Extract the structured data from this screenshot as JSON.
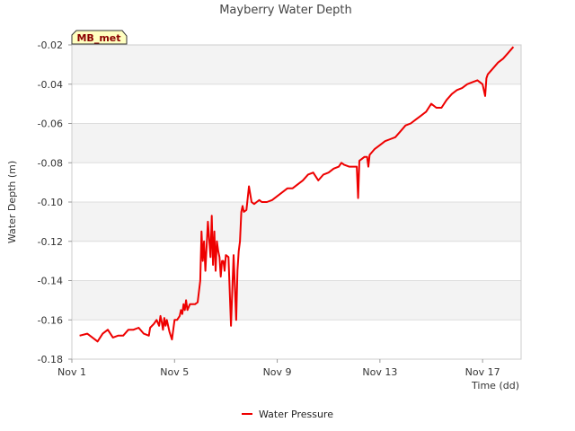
{
  "chart_data": {
    "type": "line",
    "title": "Mayberry Water Depth",
    "xlabel": "Time (dd)",
    "ylabel": "Water Depth (m)",
    "xlim": [
      1,
      18.5
    ],
    "ylim": [
      -0.18,
      -0.02
    ],
    "x_ticks": [
      1,
      5,
      9,
      13,
      17
    ],
    "x_tick_labels": [
      "Nov 1",
      "Nov 5",
      "Nov 9",
      "Nov 13",
      "Nov 17"
    ],
    "y_ticks": [
      -0.18,
      -0.16,
      -0.14,
      -0.12,
      -0.1,
      -0.08,
      -0.06,
      -0.04,
      -0.02
    ],
    "y_tick_labels": [
      "-0.18",
      "-0.16",
      "-0.14",
      "-0.12",
      "-0.10",
      "-0.08",
      "-0.06",
      "-0.04",
      "-0.02"
    ],
    "badge": "MB_met",
    "legend": {
      "placement": "bottom-center",
      "entries": [
        "Water Pressure"
      ]
    },
    "series": [
      {
        "name": "Water Pressure",
        "color": "#ee0000",
        "x": [
          1.3,
          1.6,
          1.8,
          2.0,
          2.2,
          2.4,
          2.6,
          2.8,
          3.0,
          3.2,
          3.4,
          3.6,
          3.8,
          4.0,
          4.05,
          4.2,
          4.3,
          4.4,
          4.45,
          4.5,
          4.55,
          4.6,
          4.65,
          4.7,
          4.8,
          4.9,
          5.0,
          5.1,
          5.2,
          5.25,
          5.3,
          5.35,
          5.4,
          5.45,
          5.5,
          5.6,
          5.8,
          5.9,
          6.0,
          6.05,
          6.1,
          6.15,
          6.2,
          6.3,
          6.4,
          6.45,
          6.5,
          6.55,
          6.6,
          6.65,
          6.7,
          6.75,
          6.8,
          6.85,
          6.9,
          6.95,
          7.0,
          7.1,
          7.2,
          7.3,
          7.4,
          7.45,
          7.5,
          7.55,
          7.6,
          7.65,
          7.7,
          7.8,
          7.9,
          8.0,
          8.1,
          8.2,
          8.3,
          8.4,
          8.5,
          8.6,
          8.8,
          9.0,
          9.2,
          9.4,
          9.6,
          9.8,
          10.0,
          10.2,
          10.4,
          10.6,
          10.8,
          11.0,
          11.2,
          11.4,
          11.5,
          11.6,
          11.8,
          12.0,
          12.1,
          12.15,
          12.2,
          12.4,
          12.5,
          12.55,
          12.6,
          12.8,
          13.0,
          13.2,
          13.4,
          13.6,
          13.8,
          14.0,
          14.2,
          14.4,
          14.6,
          14.8,
          15.0,
          15.2,
          15.4,
          15.6,
          15.8,
          16.0,
          16.2,
          16.4,
          16.6,
          16.8,
          17.0,
          17.1,
          17.15,
          17.2,
          17.4,
          17.6,
          17.8,
          18.0,
          18.2
        ],
        "values": [
          -0.168,
          -0.167,
          -0.169,
          -0.171,
          -0.167,
          -0.165,
          -0.169,
          -0.168,
          -0.168,
          -0.165,
          -0.165,
          -0.164,
          -0.167,
          -0.168,
          -0.164,
          -0.162,
          -0.16,
          -0.163,
          -0.158,
          -0.161,
          -0.165,
          -0.159,
          -0.163,
          -0.16,
          -0.166,
          -0.17,
          -0.16,
          -0.16,
          -0.158,
          -0.155,
          -0.157,
          -0.152,
          -0.155,
          -0.15,
          -0.155,
          -0.152,
          -0.152,
          -0.151,
          -0.14,
          -0.115,
          -0.13,
          -0.12,
          -0.135,
          -0.11,
          -0.128,
          -0.107,
          -0.132,
          -0.115,
          -0.135,
          -0.12,
          -0.125,
          -0.128,
          -0.138,
          -0.13,
          -0.13,
          -0.135,
          -0.127,
          -0.128,
          -0.163,
          -0.127,
          -0.16,
          -0.135,
          -0.125,
          -0.12,
          -0.105,
          -0.102,
          -0.105,
          -0.104,
          -0.092,
          -0.1,
          -0.101,
          -0.1,
          -0.099,
          -0.1,
          -0.1,
          -0.1,
          -0.099,
          -0.097,
          -0.095,
          -0.093,
          -0.093,
          -0.091,
          -0.089,
          -0.086,
          -0.085,
          -0.089,
          -0.086,
          -0.085,
          -0.083,
          -0.082,
          -0.08,
          -0.081,
          -0.082,
          -0.082,
          -0.082,
          -0.098,
          -0.079,
          -0.077,
          -0.077,
          -0.082,
          -0.076,
          -0.073,
          -0.071,
          -0.069,
          -0.068,
          -0.067,
          -0.064,
          -0.061,
          -0.06,
          -0.058,
          -0.056,
          -0.054,
          -0.05,
          -0.052,
          -0.052,
          -0.048,
          -0.045,
          -0.043,
          -0.042,
          -0.04,
          -0.039,
          -0.038,
          -0.04,
          -0.046,
          -0.037,
          -0.035,
          -0.032,
          -0.029,
          -0.027,
          -0.024,
          -0.021
        ]
      }
    ]
  }
}
